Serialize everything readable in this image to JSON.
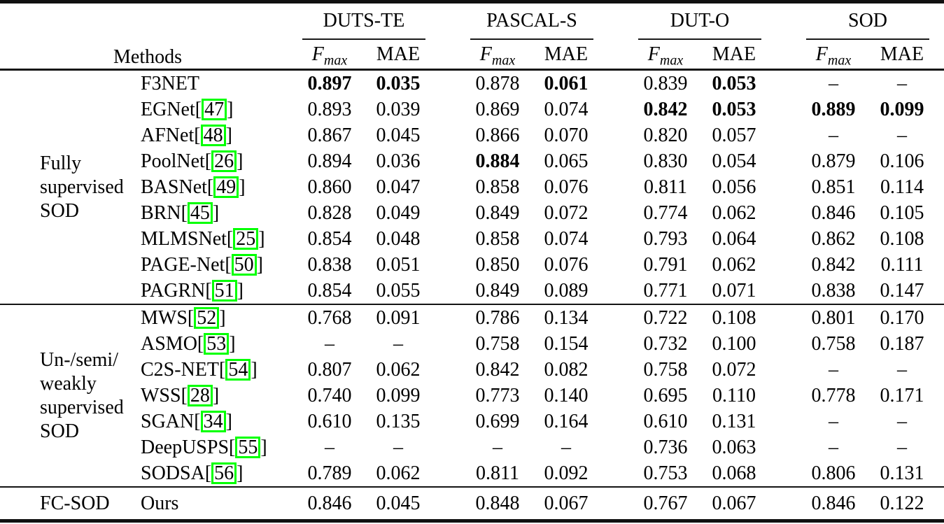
{
  "table": {
    "header": {
      "methods_label": "Methods",
      "datasets": [
        "DUTS-TE",
        "PASCAL-S",
        "DUT-O",
        "SOD"
      ],
      "metrics": {
        "fmax_base": "F",
        "fmax_sub": "max",
        "mae": "MAE"
      }
    },
    "missing_marker": "–",
    "groups": [
      {
        "label_lines": [
          "Fully",
          "supervised",
          "SOD"
        ],
        "rows": [
          {
            "method": "F3NET",
            "cite": null,
            "values": [
              "0.897",
              "0.035",
              "0.878",
              "0.061",
              "0.839",
              "0.053",
              "–",
              "–"
            ],
            "bold": [
              1,
              1,
              0,
              1,
              0,
              1,
              0,
              0
            ]
          },
          {
            "method": "EGNet",
            "cite": "47",
            "values": [
              "0.893",
              "0.039",
              "0.869",
              "0.074",
              "0.842",
              "0.053",
              "0.889",
              "0.099"
            ],
            "bold": [
              0,
              0,
              0,
              0,
              1,
              1,
              1,
              1
            ]
          },
          {
            "method": "AFNet",
            "cite": "48",
            "values": [
              "0.867",
              "0.045",
              "0.866",
              "0.070",
              "0.820",
              "0.057",
              "–",
              "–"
            ],
            "bold": [
              0,
              0,
              0,
              0,
              0,
              0,
              0,
              0
            ]
          },
          {
            "method": "PoolNet",
            "cite": "26",
            "values": [
              "0.894",
              "0.036",
              "0.884",
              "0.065",
              "0.830",
              "0.054",
              "0.879",
              "0.106"
            ],
            "bold": [
              0,
              0,
              1,
              0,
              0,
              0,
              0,
              0
            ]
          },
          {
            "method": "BASNet",
            "cite": "49",
            "values": [
              "0.860",
              "0.047",
              "0.858",
              "0.076",
              "0.811",
              "0.056",
              "0.851",
              "0.114"
            ],
            "bold": [
              0,
              0,
              0,
              0,
              0,
              0,
              0,
              0
            ]
          },
          {
            "method": "BRN",
            "cite": "45",
            "values": [
              "0.828",
              "0.049",
              "0.849",
              "0.072",
              "0.774",
              "0.062",
              "0.846",
              "0.105"
            ],
            "bold": [
              0,
              0,
              0,
              0,
              0,
              0,
              0,
              0
            ]
          },
          {
            "method": "MLMSNet",
            "cite": "25",
            "values": [
              "0.854",
              "0.048",
              "0.858",
              "0.074",
              "0.793",
              "0.064",
              "0.862",
              "0.108"
            ],
            "bold": [
              0,
              0,
              0,
              0,
              0,
              0,
              0,
              0
            ]
          },
          {
            "method": "PAGE-Net",
            "cite": "50",
            "values": [
              "0.838",
              "0.051",
              "0.850",
              "0.076",
              "0.791",
              "0.062",
              "0.842",
              "0.111"
            ],
            "bold": [
              0,
              0,
              0,
              0,
              0,
              0,
              0,
              0
            ]
          },
          {
            "method": "PAGRN",
            "cite": "51",
            "values": [
              "0.854",
              "0.055",
              "0.849",
              "0.089",
              "0.771",
              "0.071",
              "0.838",
              "0.147"
            ],
            "bold": [
              0,
              0,
              0,
              0,
              0,
              0,
              0,
              0
            ]
          }
        ]
      },
      {
        "label_lines": [
          "Un-/semi/",
          "weakly",
          "supervised",
          "SOD"
        ],
        "rows": [
          {
            "method": "MWS",
            "cite": "52",
            "values": [
              "0.768",
              "0.091",
              "0.786",
              "0.134",
              "0.722",
              "0.108",
              "0.801",
              "0.170"
            ],
            "bold": [
              0,
              0,
              0,
              0,
              0,
              0,
              0,
              0
            ]
          },
          {
            "method": "ASMO",
            "cite": "53",
            "values": [
              "–",
              "–",
              "0.758",
              "0.154",
              "0.732",
              "0.100",
              "0.758",
              "0.187"
            ],
            "bold": [
              0,
              0,
              0,
              0,
              0,
              0,
              0,
              0
            ]
          },
          {
            "method": "C2S-NET",
            "cite": "54",
            "values": [
              "0.807",
              "0.062",
              "0.842",
              "0.082",
              "0.758",
              "0.072",
              "–",
              "–"
            ],
            "bold": [
              0,
              0,
              0,
              0,
              0,
              0,
              0,
              0
            ]
          },
          {
            "method": "WSS",
            "cite": "28",
            "values": [
              "0.740",
              "0.099",
              "0.773",
              "0.140",
              "0.695",
              "0.110",
              "0.778",
              "0.171"
            ],
            "bold": [
              0,
              0,
              0,
              0,
              0,
              0,
              0,
              0
            ]
          },
          {
            "method": "SGAN",
            "cite": "34",
            "values": [
              "0.610",
              "0.135",
              "0.699",
              "0.164",
              "0.610",
              "0.131",
              "–",
              "–"
            ],
            "bold": [
              0,
              0,
              0,
              0,
              0,
              0,
              0,
              0
            ]
          },
          {
            "method": "DeepUSPS",
            "cite": "55",
            "values": [
              "–",
              "–",
              "–",
              "–",
              "0.736",
              "0.063",
              "–",
              "–"
            ],
            "bold": [
              0,
              0,
              0,
              0,
              0,
              0,
              0,
              0
            ]
          },
          {
            "method": "SODSA",
            "cite": "56",
            "values": [
              "0.789",
              "0.062",
              "0.811",
              "0.092",
              "0.753",
              "0.068",
              "0.806",
              "0.131"
            ],
            "bold": [
              0,
              0,
              0,
              0,
              0,
              0,
              0,
              0
            ]
          }
        ]
      },
      {
        "label_lines": [
          "FC-SOD"
        ],
        "tall": true,
        "rows": [
          {
            "method": "Ours",
            "cite": null,
            "values": [
              "0.846",
              "0.045",
              "0.848",
              "0.067",
              "0.767",
              "0.067",
              "0.846",
              "0.122"
            ],
            "bold": [
              0,
              0,
              0,
              0,
              0,
              0,
              0,
              0
            ]
          }
        ]
      }
    ]
  },
  "colors": {
    "citation_box_green": "#00ff00",
    "text": "#000000",
    "rule": "#141414",
    "background": "#ffffff"
  }
}
